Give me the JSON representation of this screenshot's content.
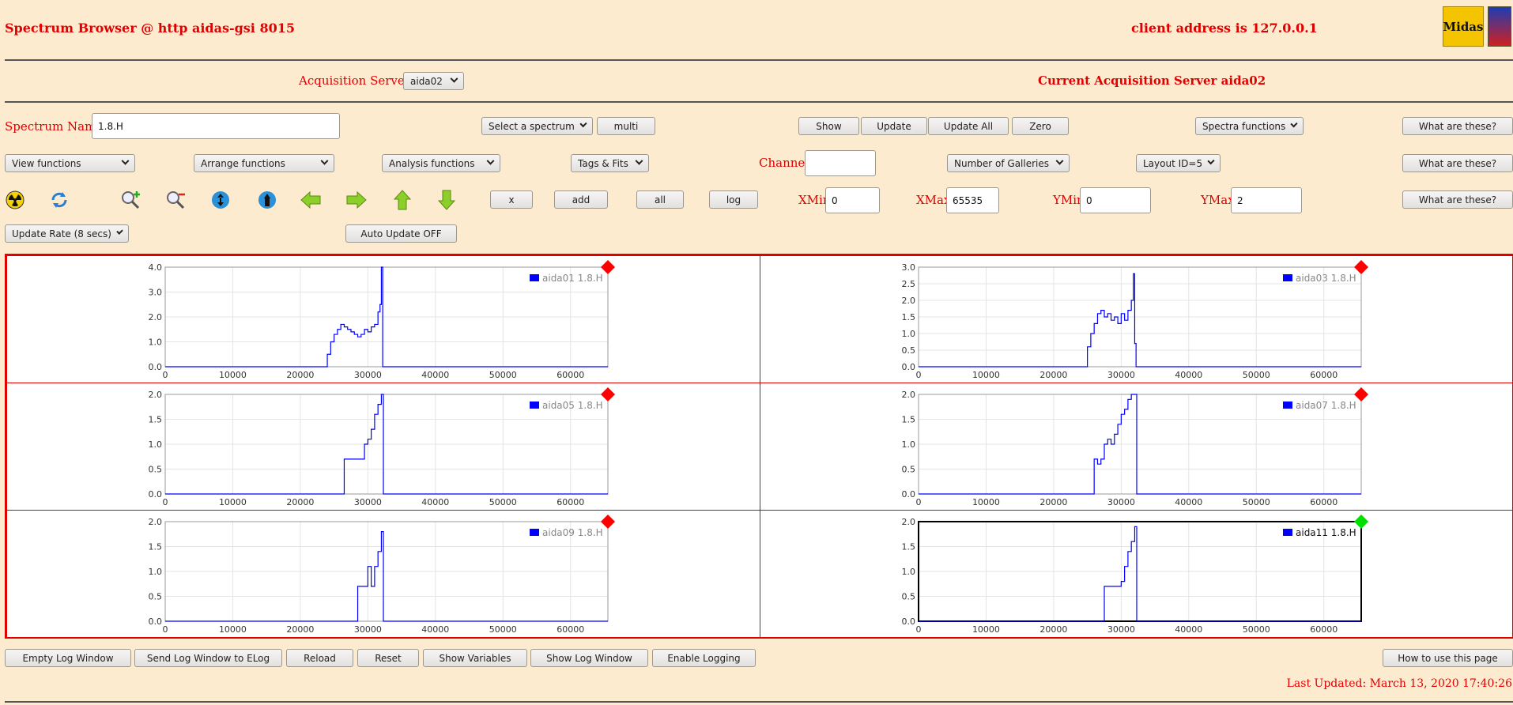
{
  "header": {
    "title": "Spectrum Browser @ http aidas-gsi 8015",
    "client_address": "client address is 127.0.0.1",
    "midas_logo_text": "Midas"
  },
  "acquisition": {
    "label": "Acquisition Servers",
    "server_select": "aida02",
    "current": "Current Acquisition Server aida02"
  },
  "spectrum": {
    "label": "Spectrum Name:",
    "name_value": "1.8.H",
    "select_spectrum": "Select a spectrum",
    "multi": "multi",
    "show": "Show",
    "update": "Update",
    "update_all": "Update All",
    "zero": "Zero",
    "spectra_functions": "Spectra functions",
    "what_are_these": "What are these?"
  },
  "functions_row": {
    "view": "View functions",
    "arrange": "Arrange functions",
    "analysis": "Analysis functions",
    "tags": "Tags & Fits",
    "channel_label": "Channel:",
    "channel_value": "",
    "galleries": "Number of Galleries",
    "layout": "Layout ID=5",
    "what_are_these": "What are these?"
  },
  "toolbar": {
    "icons": [
      "radiation-icon",
      "refresh-icon",
      "zoom-in-icon",
      "zoom-out-icon",
      "expand-vertical-icon",
      "expand-horizontal-icon",
      "arrow-left-icon",
      "arrow-right-icon",
      "arrow-up-icon",
      "arrow-down-icon"
    ],
    "x": "x",
    "add": "add",
    "all": "all",
    "log": "log",
    "xmin_label": "XMin",
    "xmin_value": "0",
    "xmax_label": "XMax",
    "xmax_value": "65535",
    "ymin_label": "YMin",
    "ymin_value": "0",
    "ymax_label": "YMax",
    "ymax_value": "2",
    "what_are_these": "What are these?"
  },
  "update_row": {
    "rate": "Update Rate (8 secs)",
    "auto_update": "Auto Update OFF"
  },
  "footer": {
    "empty_log": "Empty Log Window",
    "send_log": "Send Log Window to ELog",
    "reload": "Reload",
    "reset": "Reset",
    "show_variables": "Show Variables",
    "show_log": "Show Log Window",
    "enable_logging": "Enable Logging",
    "how_to": "How to use this page",
    "last_updated": "Last Updated: March 13, 2020 17:40:26"
  },
  "colors": {
    "background": "#fdebd0",
    "accent_red": "#e00000",
    "series_blue": "#0000ff",
    "marker_inactive": "#ff0000",
    "marker_active": "#00e000"
  },
  "chart_data": [
    {
      "type": "line",
      "legend": "aida01 1.8.H",
      "active": false,
      "xlim": [
        0,
        65535
      ],
      "ylim": [
        0,
        4
      ],
      "yticks": [
        "0.0",
        "1.0",
        "2.0",
        "3.0",
        "4.0"
      ],
      "xticks": [
        0,
        10000,
        20000,
        30000,
        40000,
        50000,
        60000
      ],
      "x": [
        24000,
        24500,
        25000,
        25500,
        26000,
        26500,
        27000,
        27500,
        28000,
        28500,
        29000,
        29500,
        30000,
        30500,
        31000,
        31500,
        31800,
        32000,
        32200
      ],
      "y": [
        0.5,
        1.0,
        1.3,
        1.5,
        1.7,
        1.6,
        1.5,
        1.4,
        1.3,
        1.2,
        1.3,
        1.5,
        1.4,
        1.6,
        1.7,
        2.2,
        2.5,
        4.0,
        0
      ]
    },
    {
      "type": "line",
      "legend": "aida03 1.8.H",
      "active": false,
      "xlim": [
        0,
        65535
      ],
      "ylim": [
        0,
        3
      ],
      "yticks": [
        "0.0",
        "0.5",
        "1.0",
        "1.5",
        "2.0",
        "2.5",
        "3.0"
      ],
      "xticks": [
        0,
        10000,
        20000,
        30000,
        40000,
        50000,
        60000
      ],
      "x": [
        25000,
        25500,
        26000,
        26500,
        27000,
        27500,
        28000,
        28500,
        29000,
        29500,
        30000,
        30500,
        31000,
        31500,
        31800,
        32000,
        32200
      ],
      "y": [
        0.6,
        1.0,
        1.3,
        1.6,
        1.7,
        1.5,
        1.6,
        1.4,
        1.5,
        1.3,
        1.6,
        1.4,
        1.7,
        2.0,
        2.8,
        0.7,
        0
      ]
    },
    {
      "type": "line",
      "legend": "aida05 1.8.H",
      "active": false,
      "xlim": [
        0,
        65535
      ],
      "ylim": [
        0,
        2
      ],
      "yticks": [
        "0.0",
        "0.5",
        "1.0",
        "1.5",
        "2.0"
      ],
      "xticks": [
        0,
        10000,
        20000,
        30000,
        40000,
        50000,
        60000
      ],
      "x": [
        26500,
        27000,
        27500,
        28000,
        28500,
        29000,
        29500,
        30000,
        30500,
        31000,
        31500,
        32000,
        32300
      ],
      "y": [
        0.7,
        0.7,
        0.7,
        0.7,
        0.7,
        0.7,
        1.0,
        1.1,
        1.3,
        1.6,
        1.8,
        2.0,
        0
      ]
    },
    {
      "type": "line",
      "legend": "aida07 1.8.H",
      "active": false,
      "xlim": [
        0,
        65535
      ],
      "ylim": [
        0,
        2
      ],
      "yticks": [
        "0.0",
        "0.5",
        "1.0",
        "1.5",
        "2.0"
      ],
      "xticks": [
        0,
        10000,
        20000,
        30000,
        40000,
        50000,
        60000
      ],
      "x": [
        26000,
        26500,
        27000,
        27500,
        28000,
        28500,
        29000,
        29500,
        30000,
        30500,
        31000,
        31500,
        32000,
        32300
      ],
      "y": [
        0.7,
        0.6,
        0.7,
        1.0,
        1.1,
        1.0,
        1.2,
        1.4,
        1.6,
        1.7,
        1.9,
        2.0,
        2.0,
        0
      ]
    },
    {
      "type": "line",
      "legend": "aida09 1.8.H",
      "active": false,
      "xlim": [
        0,
        65535
      ],
      "ylim": [
        0,
        2
      ],
      "yticks": [
        "0.0",
        "0.5",
        "1.0",
        "1.5",
        "2.0"
      ],
      "xticks": [
        0,
        10000,
        20000,
        30000,
        40000,
        50000,
        60000
      ],
      "x": [
        28500,
        29000,
        29500,
        30000,
        30500,
        31000,
        31500,
        32000,
        32300
      ],
      "y": [
        0.7,
        0.7,
        0.7,
        1.1,
        0.7,
        1.1,
        1.4,
        1.8,
        0
      ]
    },
    {
      "type": "line",
      "legend": "aida11 1.8.H",
      "active": true,
      "xlim": [
        0,
        65535
      ],
      "ylim": [
        0,
        2
      ],
      "yticks": [
        "0.0",
        "0.5",
        "1.0",
        "1.5",
        "2.0"
      ],
      "xticks": [
        0,
        10000,
        20000,
        30000,
        40000,
        50000,
        60000
      ],
      "x": [
        27500,
        28000,
        28500,
        29000,
        29500,
        30000,
        30500,
        31000,
        31500,
        32000,
        32300
      ],
      "y": [
        0.7,
        0.7,
        0.7,
        0.7,
        0.7,
        0.8,
        1.1,
        1.4,
        1.6,
        1.9,
        0
      ]
    }
  ]
}
